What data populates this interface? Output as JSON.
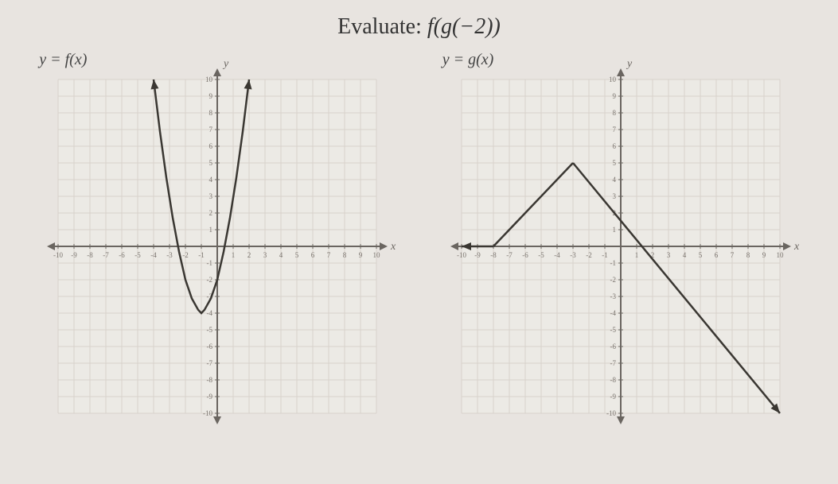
{
  "title_prefix": "Evaluate: ",
  "title_expr": "f(g(−2))",
  "left": {
    "label": "y = f(x)",
    "type": "line",
    "axis_label_x": "x",
    "axis_label_y": "y",
    "xlim": [
      -10,
      10
    ],
    "ylim": [
      -10,
      10
    ],
    "tick_step": 1,
    "grid_color": "#d8d2cc",
    "axis_color": "#6a6560",
    "tick_label_color": "#7a746e",
    "bg": "#eceae5",
    "curve_color": "#3a3732",
    "curve": [
      [
        -4,
        10
      ],
      [
        -3.6,
        6.88
      ],
      [
        -3.2,
        4.12
      ],
      [
        -2.8,
        1.72
      ],
      [
        -2.4,
        -0.32
      ],
      [
        -2.0,
        -2.0
      ],
      [
        -1.6,
        -3.12
      ],
      [
        -1.2,
        -3.8
      ],
      [
        -1.0,
        -4.0
      ],
      [
        -0.8,
        -3.8
      ],
      [
        -0.4,
        -3.12
      ],
      [
        0.0,
        -2.0
      ],
      [
        0.4,
        -0.32
      ],
      [
        0.8,
        1.72
      ],
      [
        1.2,
        4.12
      ],
      [
        1.6,
        6.88
      ],
      [
        2.0,
        10
      ]
    ]
  },
  "right": {
    "label": "y = g(x)",
    "type": "line",
    "axis_label_x": "x",
    "axis_label_y": "y",
    "xlim": [
      -10,
      10
    ],
    "ylim": [
      -10,
      10
    ],
    "tick_step": 1,
    "grid_color": "#d8d2cc",
    "axis_color": "#6a6560",
    "tick_label_color": "#7a746e",
    "bg": "#eceae5",
    "curve_color": "#3a3732",
    "segments": [
      [
        [
          -10,
          0
        ],
        [
          -8,
          0
        ]
      ],
      [
        [
          -8,
          0
        ],
        [
          -3,
          5
        ]
      ],
      [
        [
          -3,
          5
        ],
        [
          10,
          -10
        ]
      ]
    ]
  }
}
